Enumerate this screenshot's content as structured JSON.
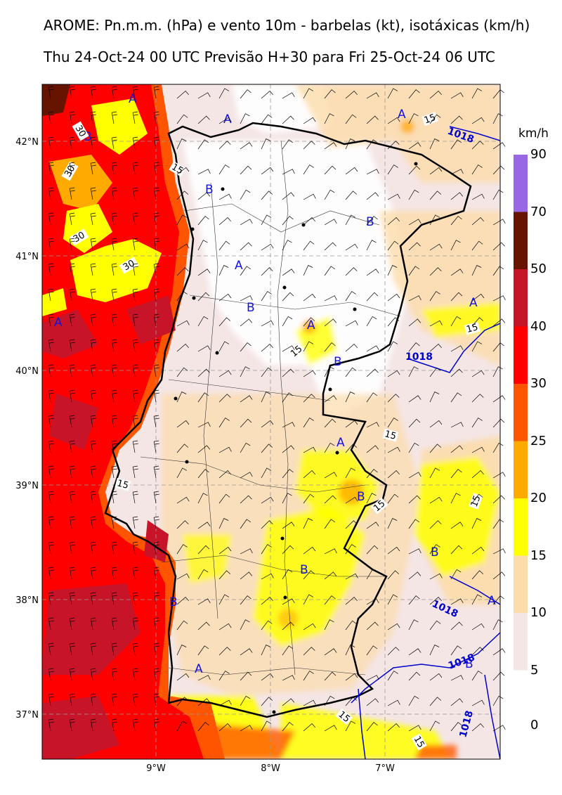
{
  "title_line1": "AROME: Pn.m.m. (hPa) e vento 10m - barbelas (kt), isotáxicas (km/h)",
  "title_line2": "Thu 24-Oct-24 00 UTC Previsão H+30 para Fri 25-Oct-24 06 UTC",
  "map": {
    "lon_labels": [
      "9°W",
      "8°W",
      "7°W"
    ],
    "lat_labels": [
      "42°N",
      "41°N",
      "40°N",
      "39°N",
      "38°N",
      "37°N"
    ]
  },
  "legend": {
    "unit": "km/h",
    "levels": [
      "90",
      "70",
      "50",
      "40",
      "30",
      "25",
      "20",
      "15",
      "10",
      "5",
      "0"
    ],
    "colors": [
      "#9966e6",
      "#661400",
      "#c81428",
      "#ff0000",
      "#ff5500",
      "#ffaa00",
      "#ffff00",
      "#fcdcaa",
      "#f5e6e6"
    ]
  },
  "pressure_labels": {
    "high": "A",
    "low": "B",
    "isobar": "1018"
  },
  "isotach_labels": [
    "15",
    "30"
  ],
  "colors": {
    "pressure_center": "#1414dc",
    "isobar": "#0000cc",
    "coast": "#000000"
  }
}
